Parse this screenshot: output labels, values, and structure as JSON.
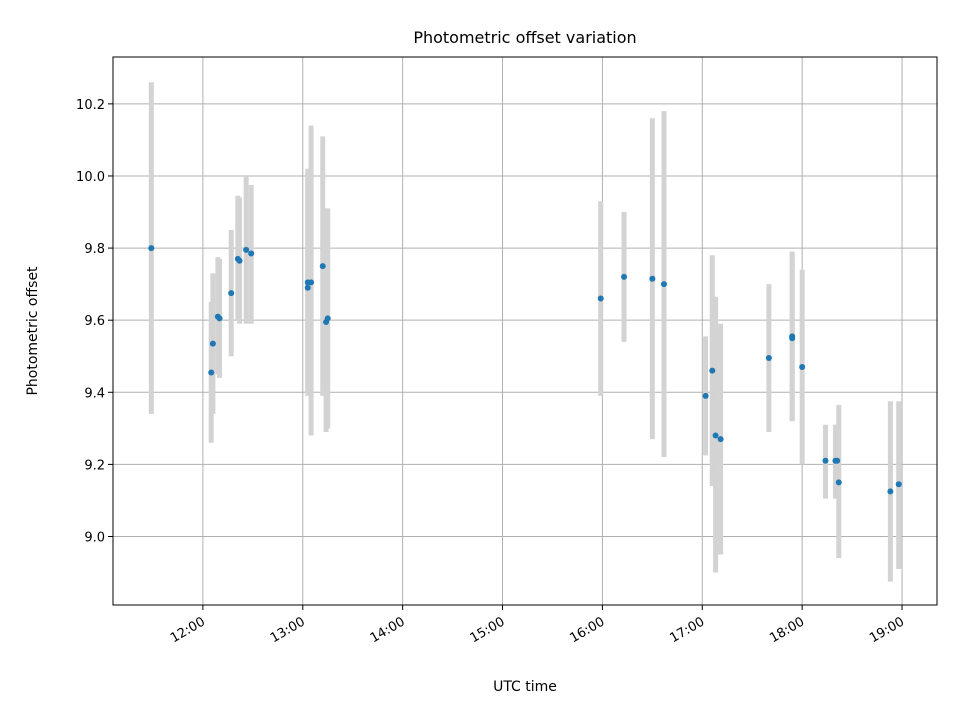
{
  "chart_data": {
    "type": "scatter",
    "title": "Photometric offset variation",
    "xlabel": "UTC time",
    "ylabel": "Photometric offset",
    "xlim": [
      "11:06",
      "19:21"
    ],
    "ylim": [
      8.81,
      10.33
    ],
    "x_ticks": [
      "12:00",
      "13:00",
      "14:00",
      "15:00",
      "16:00",
      "17:00",
      "18:00",
      "19:00"
    ],
    "y_ticks": [
      9.0,
      9.2,
      9.4,
      9.6,
      9.8,
      10.0,
      10.2
    ],
    "grid": true,
    "series": [
      {
        "points": [
          {
            "x": "11:29",
            "y": 9.8,
            "ylo": 9.34,
            "yhi": 10.26
          },
          {
            "x": "12:05",
            "y": 9.455,
            "ylo": 9.26,
            "yhi": 9.65
          },
          {
            "x": "12:06",
            "y": 9.535,
            "ylo": 9.34,
            "yhi": 9.73
          },
          {
            "x": "12:09",
            "y": 9.61,
            "ylo": 9.45,
            "yhi": 9.775
          },
          {
            "x": "12:10",
            "y": 9.605,
            "ylo": 9.44,
            "yhi": 9.77
          },
          {
            "x": "12:17",
            "y": 9.675,
            "ylo": 9.5,
            "yhi": 9.85
          },
          {
            "x": "12:21",
            "y": 9.77,
            "ylo": 9.6,
            "yhi": 9.945
          },
          {
            "x": "12:22",
            "y": 9.765,
            "ylo": 9.59,
            "yhi": 9.94
          },
          {
            "x": "12:26",
            "y": 9.795,
            "ylo": 9.59,
            "yhi": 10.0
          },
          {
            "x": "12:29",
            "y": 9.785,
            "ylo": 9.59,
            "yhi": 9.975
          },
          {
            "x": "13:03",
            "y": 9.69,
            "ylo": 9.39,
            "yhi": 10.02
          },
          {
            "x": "13:03",
            "y": 9.705,
            "ylo": 9.4,
            "yhi": 10.01
          },
          {
            "x": "13:05",
            "y": 9.705,
            "ylo": 9.28,
            "yhi": 10.14
          },
          {
            "x": "13:12",
            "y": 9.75,
            "ylo": 9.39,
            "yhi": 10.11
          },
          {
            "x": "13:14",
            "y": 9.595,
            "ylo": 9.29,
            "yhi": 9.91
          },
          {
            "x": "13:15",
            "y": 9.605,
            "ylo": 9.3,
            "yhi": 9.91
          },
          {
            "x": "15:59",
            "y": 9.66,
            "ylo": 9.39,
            "yhi": 9.93
          },
          {
            "x": "16:13",
            "y": 9.72,
            "ylo": 9.54,
            "yhi": 9.9
          },
          {
            "x": "16:30",
            "y": 9.715,
            "ylo": 9.27,
            "yhi": 10.16
          },
          {
            "x": "16:37",
            "y": 9.7,
            "ylo": 9.22,
            "yhi": 10.18
          },
          {
            "x": "17:02",
            "y": 9.39,
            "ylo": 9.225,
            "yhi": 9.555
          },
          {
            "x": "17:06",
            "y": 9.46,
            "ylo": 9.14,
            "yhi": 9.78
          },
          {
            "x": "17:08",
            "y": 9.28,
            "ylo": 8.9,
            "yhi": 9.665
          },
          {
            "x": "17:11",
            "y": 9.27,
            "ylo": 8.95,
            "yhi": 9.59
          },
          {
            "x": "17:40",
            "y": 9.495,
            "ylo": 9.29,
            "yhi": 9.7
          },
          {
            "x": "17:54",
            "y": 9.55,
            "ylo": 9.32,
            "yhi": 9.79
          },
          {
            "x": "17:54",
            "y": 9.555,
            "ylo": 9.32,
            "yhi": 9.79
          },
          {
            "x": "18:00",
            "y": 9.47,
            "ylo": 9.2,
            "yhi": 9.74
          },
          {
            "x": "18:14",
            "y": 9.21,
            "ylo": 9.105,
            "yhi": 9.31
          },
          {
            "x": "18:20",
            "y": 9.21,
            "ylo": 9.105,
            "yhi": 9.31
          },
          {
            "x": "18:21",
            "y": 9.21,
            "ylo": 9.105,
            "yhi": 9.31
          },
          {
            "x": "18:22",
            "y": 9.15,
            "ylo": 8.94,
            "yhi": 9.365
          },
          {
            "x": "18:53",
            "y": 9.125,
            "ylo": 8.875,
            "yhi": 9.375
          },
          {
            "x": "18:58",
            "y": 9.145,
            "ylo": 8.91,
            "yhi": 9.375
          }
        ],
        "color": "#1f77b4",
        "errorbar_color": "#d3d3d3"
      }
    ]
  }
}
